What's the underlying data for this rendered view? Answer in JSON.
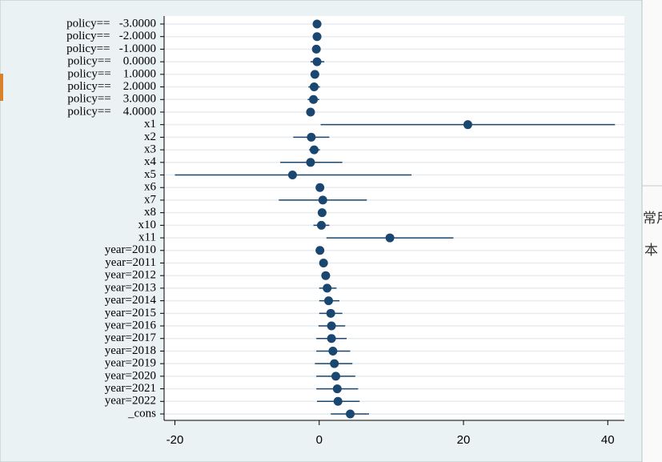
{
  "background_text": [
    "常用",
    "本"
  ],
  "chart_data": {
    "type": "coefplot",
    "categories": [
      "policy==   -3.0000",
      "policy==   -2.0000",
      "policy==   -1.0000",
      "policy==    0.0000",
      "policy==    1.0000",
      "policy==    2.0000",
      "policy==    3.0000",
      "policy==    4.0000",
      "x1",
      "x2",
      "x3",
      "x4",
      "x5",
      "x6",
      "x7",
      "x8",
      "x10",
      "x11",
      "year=2010",
      "year=2011",
      "year=2012",
      "year=2013",
      "year=2014",
      "year=2015",
      "year=2016",
      "year=2017",
      "year=2018",
      "year=2019",
      "year=2020",
      "year=2021",
      "year=2022",
      "_cons"
    ],
    "values": [
      -0.3,
      -0.3,
      -0.4,
      -0.3,
      -0.6,
      -0.7,
      -0.8,
      -1.2,
      20.6,
      -1.1,
      -0.7,
      -1.2,
      -3.7,
      0.1,
      0.5,
      0.4,
      0.3,
      9.8,
      0.1,
      0.6,
      0.9,
      1.1,
      1.3,
      1.6,
      1.7,
      1.7,
      1.9,
      2.1,
      2.3,
      2.5,
      2.6,
      4.3
    ],
    "ci_low": [
      -0.5,
      -0.5,
      -0.6,
      -1.2,
      -1.1,
      -1.5,
      -1.6,
      -1.7,
      0.2,
      -3.6,
      -1.4,
      -5.4,
      -20,
      0,
      -5.6,
      0,
      -0.8,
      1.0,
      -0.2,
      0.2,
      0.3,
      0,
      0,
      0,
      -0.1,
      -0.4,
      -0.4,
      -0.6,
      -0.4,
      -0.4,
      -0.3,
      1.6
    ],
    "ci_high": [
      -0.1,
      -0.1,
      -0.2,
      0.7,
      -0.1,
      0.1,
      0.0,
      -0.7,
      41.0,
      1.4,
      0.1,
      3.2,
      12.8,
      0.3,
      6.6,
      0.9,
      1.4,
      18.6,
      0.3,
      1.0,
      1.5,
      2.4,
      2.8,
      3.2,
      3.6,
      3.8,
      4.3,
      4.6,
      5.0,
      5.4,
      5.6,
      6.9
    ],
    "color": "#1a476f",
    "xlim": [
      -21.5,
      42.3
    ],
    "xticks": [
      -20,
      0,
      20,
      40
    ],
    "grid": true
  }
}
